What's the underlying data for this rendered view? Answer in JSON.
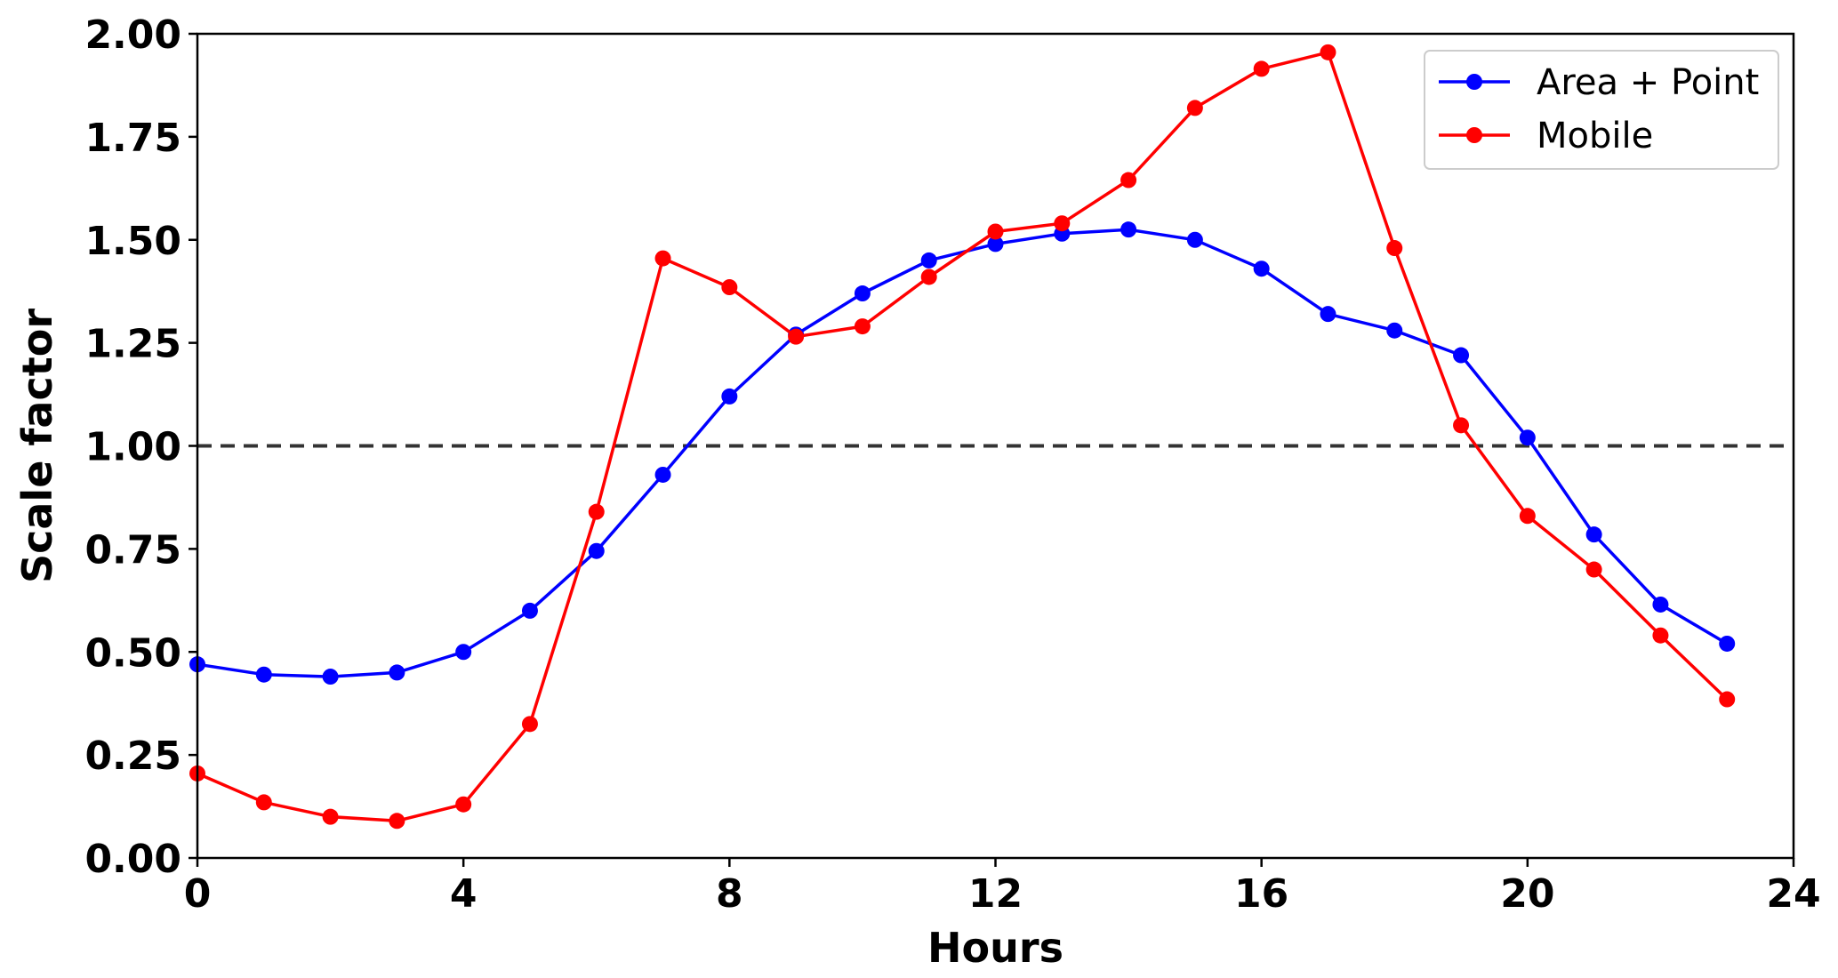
{
  "chart_data": {
    "type": "line",
    "title": "",
    "xlabel": "Hours",
    "ylabel": "Scale factor",
    "xlim": [
      0,
      24
    ],
    "ylim": [
      0,
      2
    ],
    "xticks": [
      0,
      4,
      8,
      12,
      16,
      20,
      24
    ],
    "xtick_labels": [
      "0",
      "4",
      "8",
      "12",
      "16",
      "20",
      "24"
    ],
    "yticks": [
      0,
      0.25,
      0.5,
      0.75,
      1.0,
      1.25,
      1.5,
      1.75,
      2.0
    ],
    "ytick_labels": [
      "0.00",
      "0.25",
      "0.50",
      "0.75",
      "1.00",
      "1.25",
      "1.50",
      "1.75",
      "2.00"
    ],
    "grid": false,
    "legend_position": "top-right",
    "reference_line": {
      "y": 1.0,
      "style": "dashed",
      "color": "#333333"
    },
    "x": [
      0,
      1,
      2,
      3,
      4,
      5,
      6,
      7,
      8,
      9,
      10,
      11,
      12,
      13,
      14,
      15,
      16,
      17,
      18,
      19,
      20,
      21,
      22,
      23
    ],
    "series": [
      {
        "name": "Area + Point",
        "color": "#0000ff",
        "values": [
          0.47,
          0.445,
          0.44,
          0.45,
          0.5,
          0.6,
          0.745,
          0.93,
          1.12,
          1.27,
          1.37,
          1.45,
          1.49,
          1.515,
          1.525,
          1.5,
          1.43,
          1.32,
          1.28,
          1.22,
          1.02,
          0.785,
          0.615,
          0.52
        ]
      },
      {
        "name": "Mobile",
        "color": "#ff0000",
        "values": [
          0.205,
          0.135,
          0.1,
          0.09,
          0.13,
          0.325,
          0.84,
          1.455,
          1.385,
          1.265,
          1.29,
          1.41,
          1.52,
          1.54,
          1.645,
          1.82,
          1.915,
          1.955,
          1.48,
          1.05,
          0.83,
          0.7,
          0.54,
          0.385
        ]
      }
    ]
  }
}
